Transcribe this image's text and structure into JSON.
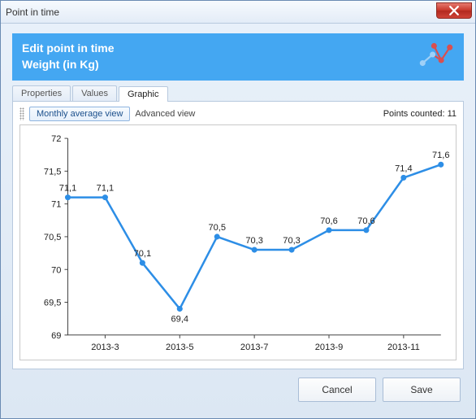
{
  "window": {
    "title": "Point in time"
  },
  "banner": {
    "line1": "Edit point in time",
    "line2": "Weight (in Kg)"
  },
  "tabs": {
    "items": [
      {
        "label": "Properties",
        "active": false
      },
      {
        "label": "Values",
        "active": false
      },
      {
        "label": "Graphic",
        "active": true
      }
    ]
  },
  "toolbar": {
    "monthly_view_label": "Monthly average view",
    "advanced_view_label": "Advanced view",
    "points_counted_label": "Points counted: 11"
  },
  "buttons": {
    "cancel": "Cancel",
    "save": "Save"
  },
  "chart": {
    "type": "line",
    "ylim": [
      69,
      72
    ],
    "ytick_step": 0.5,
    "ytick_labels": [
      "69",
      "69,5",
      "70",
      "70,5",
      "71",
      "71,5",
      "72"
    ],
    "categories": [
      "2013-2",
      "2013-3",
      "2013-4",
      "2013-5",
      "2013-6",
      "2013-7",
      "2013-8",
      "2013-9",
      "2013-10",
      "2013-11",
      "2013-12"
    ],
    "x_visible_labels": [
      "2013-3",
      "2013-5",
      "2013-7",
      "2013-9",
      "2013-11"
    ],
    "values": [
      71.1,
      71.1,
      70.1,
      69.4,
      70.5,
      70.3,
      70.3,
      70.6,
      70.6,
      71.4,
      71.6
    ],
    "value_labels": [
      "71,1",
      "71,1",
      "70,1",
      "69,4",
      "70,5",
      "70,3",
      "70,3",
      "70,6",
      "70,6",
      "71,4",
      "71,6"
    ],
    "line_color": "#2d8ee6",
    "line_width": 2.5,
    "marker_color": "#2d8ee6",
    "marker_size": 3.5,
    "axis_color": "#444444",
    "label_color": "#222222",
    "label_fontsize": 11,
    "background_color": "#ffffff"
  }
}
